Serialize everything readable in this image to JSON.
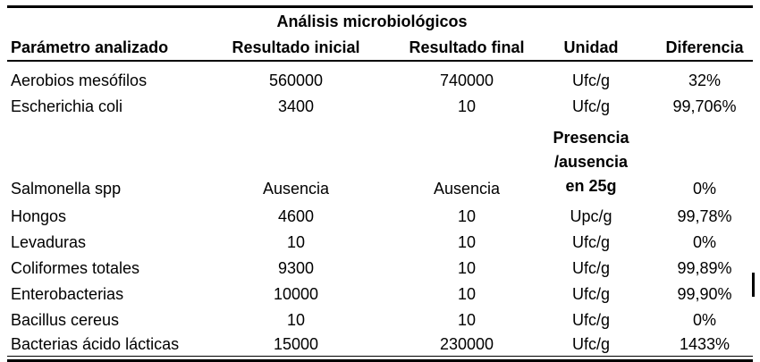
{
  "page": {
    "background": "#ffffff",
    "text_color": "#000000",
    "rule_color": "#000000"
  },
  "table": {
    "title": "Análisis microbiológicos",
    "columns": [
      "Parámetro analizado",
      "Resultado inicial",
      "Resultado final",
      "Unidad",
      "Diferencia"
    ],
    "rows": [
      {
        "param": "Aerobios mesófilos",
        "inicial": "560000",
        "final": "740000",
        "unidad": "Ufc/g",
        "diferencia": "32%"
      },
      {
        "param": "Escherichia coli",
        "inicial": "3400",
        "final": "10",
        "unidad": "Ufc/g",
        "diferencia": "99,706%"
      },
      {
        "param": "Salmonella spp",
        "inicial": "Ausencia",
        "final": "Ausencia",
        "unidad": [
          "Presencia",
          "/ausencia",
          "en 25g"
        ],
        "diferencia": "0%"
      },
      {
        "param": "Hongos",
        "inicial": "4600",
        "final": "10",
        "unidad": "Upc/g",
        "diferencia": "99,78%"
      },
      {
        "param": "Levaduras",
        "inicial": "10",
        "final": "10",
        "unidad": "Ufc/g",
        "diferencia": "0%"
      },
      {
        "param": "Coliformes totales",
        "inicial": "9300",
        "final": "10",
        "unidad": "Ufc/g",
        "diferencia": "99,89%"
      },
      {
        "param": "Enterobacterias",
        "inicial": "10000",
        "final": "10",
        "unidad": "Ufc/g",
        "diferencia": "99,90%"
      },
      {
        "param": "Bacillus cereus",
        "inicial": "10",
        "final": "10",
        "unidad": "Ufc/g",
        "diferencia": "0%"
      },
      {
        "param": "Bacterias ácido lácticas",
        "inicial": "15000",
        "final": "230000",
        "unidad": "Ufc/g",
        "diferencia": "1433%"
      }
    ]
  }
}
